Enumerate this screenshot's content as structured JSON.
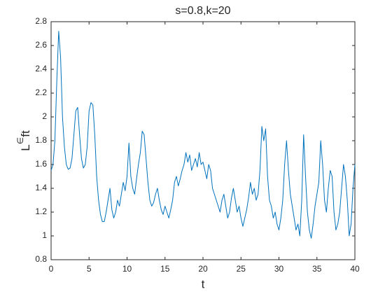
{
  "chart_data": {
    "type": "line",
    "title": "s=0.8,k=20",
    "xlabel": "t",
    "ylabel": [
      "L",
      "∈",
      "ft"
    ],
    "x": [
      0,
      0.25,
      0.5,
      0.75,
      1,
      1.25,
      1.5,
      1.75,
      2,
      2.25,
      2.5,
      2.75,
      3,
      3.25,
      3.5,
      3.75,
      4,
      4.25,
      4.5,
      4.75,
      5,
      5.25,
      5.5,
      5.75,
      6,
      6.25,
      6.5,
      6.75,
      7,
      7.25,
      7.5,
      7.75,
      8,
      8.25,
      8.5,
      8.75,
      9,
      9.25,
      9.5,
      9.75,
      10,
      10.25,
      10.5,
      10.75,
      11,
      11.25,
      11.5,
      11.75,
      12,
      12.25,
      12.5,
      12.75,
      13,
      13.25,
      13.5,
      13.75,
      14,
      14.25,
      14.5,
      14.75,
      15,
      15.25,
      15.5,
      15.75,
      16,
      16.25,
      16.5,
      16.75,
      17,
      17.25,
      17.5,
      17.75,
      18,
      18.25,
      18.5,
      18.75,
      19,
      19.25,
      19.5,
      19.75,
      20,
      20.25,
      20.5,
      20.75,
      21,
      21.25,
      21.5,
      21.75,
      22,
      22.25,
      22.5,
      22.75,
      23,
      23.25,
      23.5,
      23.75,
      24,
      24.25,
      24.5,
      24.75,
      25,
      25.25,
      25.5,
      25.75,
      26,
      26.25,
      26.5,
      26.75,
      27,
      27.25,
      27.5,
      27.75,
      28,
      28.25,
      28.5,
      28.75,
      29,
      29.25,
      29.5,
      29.75,
      30,
      30.25,
      30.5,
      30.75,
      31,
      31.25,
      31.5,
      31.75,
      32,
      32.25,
      32.5,
      32.75,
      33,
      33.25,
      33.5,
      33.75,
      34,
      34.25,
      34.5,
      34.75,
      35,
      35.25,
      35.5,
      35.75,
      36,
      36.25,
      36.5,
      36.75,
      37,
      37.25,
      37.5,
      37.75,
      38,
      38.25,
      38.5,
      38.75,
      39,
      39.25,
      39.5,
      39.75,
      40
    ],
    "series": [
      {
        "color": "#0072bd",
        "values": [
          1.55,
          1.6,
          1.8,
          2.3,
          2.72,
          2.5,
          2.0,
          1.75,
          1.6,
          1.56,
          1.57,
          1.65,
          1.85,
          2.05,
          2.08,
          1.85,
          1.65,
          1.57,
          1.6,
          1.75,
          2.05,
          2.12,
          2.1,
          1.85,
          1.5,
          1.3,
          1.18,
          1.12,
          1.12,
          1.2,
          1.3,
          1.4,
          1.22,
          1.15,
          1.2,
          1.3,
          1.25,
          1.35,
          1.45,
          1.38,
          1.5,
          1.78,
          1.5,
          1.4,
          1.35,
          1.48,
          1.6,
          1.7,
          1.88,
          1.85,
          1.65,
          1.45,
          1.3,
          1.25,
          1.28,
          1.35,
          1.4,
          1.3,
          1.22,
          1.18,
          1.25,
          1.2,
          1.15,
          1.22,
          1.3,
          1.45,
          1.5,
          1.42,
          1.48,
          1.55,
          1.6,
          1.7,
          1.62,
          1.68,
          1.55,
          1.6,
          1.65,
          1.58,
          1.7,
          1.6,
          1.62,
          1.55,
          1.48,
          1.6,
          1.55,
          1.4,
          1.35,
          1.3,
          1.25,
          1.2,
          1.3,
          1.35,
          1.25,
          1.15,
          1.2,
          1.32,
          1.4,
          1.3,
          1.2,
          1.25,
          1.15,
          1.08,
          1.15,
          1.22,
          1.32,
          1.45,
          1.35,
          1.4,
          1.3,
          1.35,
          1.55,
          1.92,
          1.8,
          1.9,
          1.5,
          1.3,
          1.25,
          1.15,
          1.2,
          1.1,
          1.05,
          1.15,
          1.3,
          1.6,
          1.8,
          1.55,
          1.35,
          1.25,
          1.15,
          1.05,
          1.1,
          1.0,
          1.3,
          1.85,
          1.5,
          1.2,
          1.05,
          0.98,
          1.1,
          1.25,
          1.35,
          1.45,
          1.8,
          1.6,
          1.3,
          1.2,
          1.4,
          1.55,
          1.5,
          1.2,
          1.05,
          1.1,
          1.2,
          1.4,
          1.6,
          1.5,
          1.3,
          1.0,
          1.1,
          1.4,
          1.6
        ]
      }
    ],
    "xlim": [
      0,
      40
    ],
    "xticks": [
      0,
      5,
      10,
      15,
      20,
      25,
      30,
      35,
      40
    ],
    "ylim": [
      0.8,
      2.8
    ],
    "yticks": [
      0.8,
      1,
      1.2,
      1.4,
      1.6,
      1.8,
      2,
      2.2,
      2.4,
      2.6,
      2.8
    ]
  }
}
